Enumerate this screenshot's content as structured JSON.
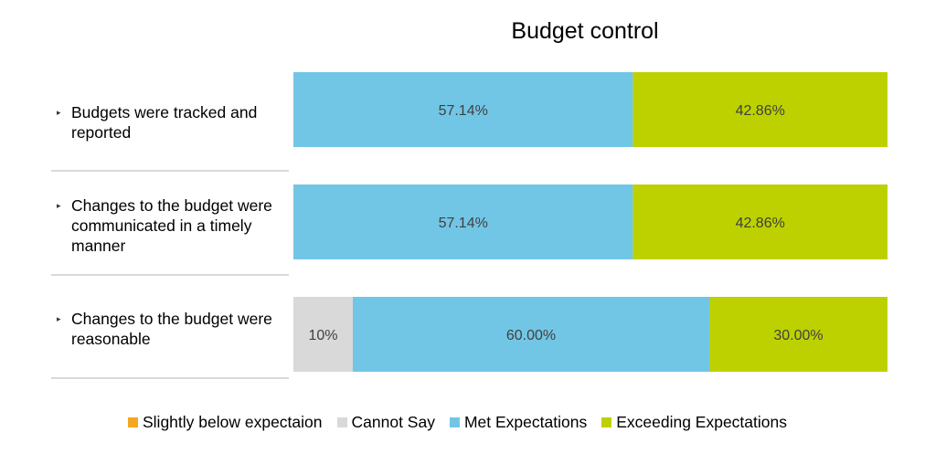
{
  "chart_data": {
    "type": "bar",
    "orientation": "horizontal",
    "stacked": true,
    "title": "Budget control",
    "categories": [
      "Budgets were tracked and reported",
      "Changes to the budget were communicated in a timely manner",
      "Changes to the budget were reasonable"
    ],
    "series": [
      {
        "name": "Slightly below expectaion",
        "color": "#f5a623",
        "values": [
          0,
          0,
          0
        ],
        "labels": [
          "",
          "",
          ""
        ]
      },
      {
        "name": "Cannot Say",
        "color": "#d9d9d9",
        "values": [
          0,
          0,
          10
        ],
        "labels": [
          "",
          "",
          "10%"
        ]
      },
      {
        "name": "Met Expectations",
        "color": "#72c6e5",
        "values": [
          57.14,
          57.14,
          60.0
        ],
        "labels": [
          "57.14%",
          "57.14%",
          "60.00%"
        ]
      },
      {
        "name": "Exceeding Expectations",
        "color": "#bdd100",
        "values": [
          42.86,
          42.86,
          30.0
        ],
        "labels": [
          "42.86%",
          "42.86%",
          "30.00%"
        ]
      }
    ],
    "legend_position": "bottom",
    "grid": false
  }
}
